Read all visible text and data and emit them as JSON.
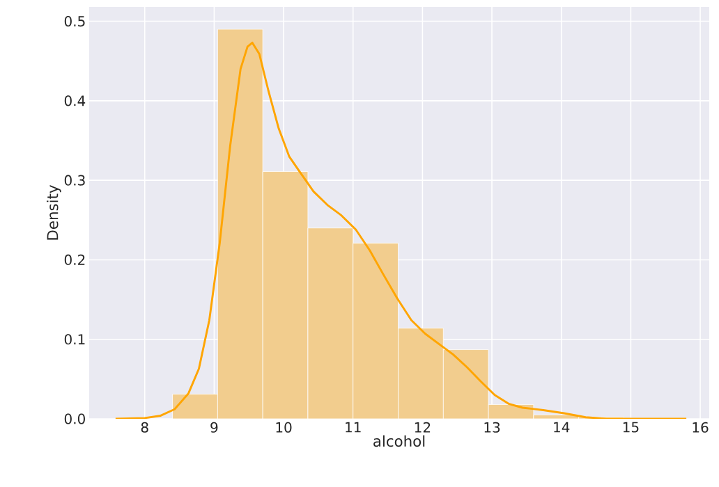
{
  "chart_data": {
    "type": "histogram",
    "xlabel": "alcohol",
    "ylabel": "Density",
    "bins": [
      8.4,
      9.05,
      9.7,
      10.35,
      11.0,
      11.65,
      12.3,
      12.95,
      13.6,
      14.25,
      14.9
    ],
    "values": [
      0.031,
      0.49,
      0.311,
      0.24,
      0.221,
      0.114,
      0.087,
      0.018,
      0.005,
      0.002
    ],
    "color": "#f2cd8e",
    "series": [
      {
        "type": "line",
        "color": "#ffa500",
        "x": [
          7.58,
          8.0,
          8.23,
          8.43,
          8.63,
          8.78,
          8.93,
          9.08,
          9.23,
          9.38,
          9.48,
          9.55,
          9.65,
          9.78,
          9.93,
          10.08,
          10.23,
          10.43,
          10.63,
          10.83,
          11.04,
          11.24,
          11.44,
          11.64,
          11.84,
          12.04,
          12.24,
          12.44,
          12.64,
          12.84,
          13.04,
          13.24,
          13.44,
          13.74,
          14.04,
          14.35,
          14.65,
          15.8
        ],
        "values": [
          0.0,
          0.001,
          0.004,
          0.012,
          0.032,
          0.063,
          0.124,
          0.221,
          0.343,
          0.44,
          0.468,
          0.473,
          0.459,
          0.413,
          0.365,
          0.33,
          0.311,
          0.286,
          0.269,
          0.256,
          0.238,
          0.212,
          0.181,
          0.151,
          0.124,
          0.107,
          0.094,
          0.081,
          0.065,
          0.047,
          0.03,
          0.019,
          0.014,
          0.011,
          0.007,
          0.002,
          0.0,
          0.0
        ]
      }
    ],
    "xlim": [
      7.2,
      16.13
    ],
    "ylim": [
      0,
      0.518
    ],
    "xticks": [
      8,
      9,
      10,
      11,
      12,
      13,
      14,
      15,
      16
    ],
    "yticks": [
      {
        "value": 0,
        "label": "0.0"
      },
      0.1,
      0.2,
      0.3,
      0.4,
      0.5
    ],
    "grid": true
  }
}
